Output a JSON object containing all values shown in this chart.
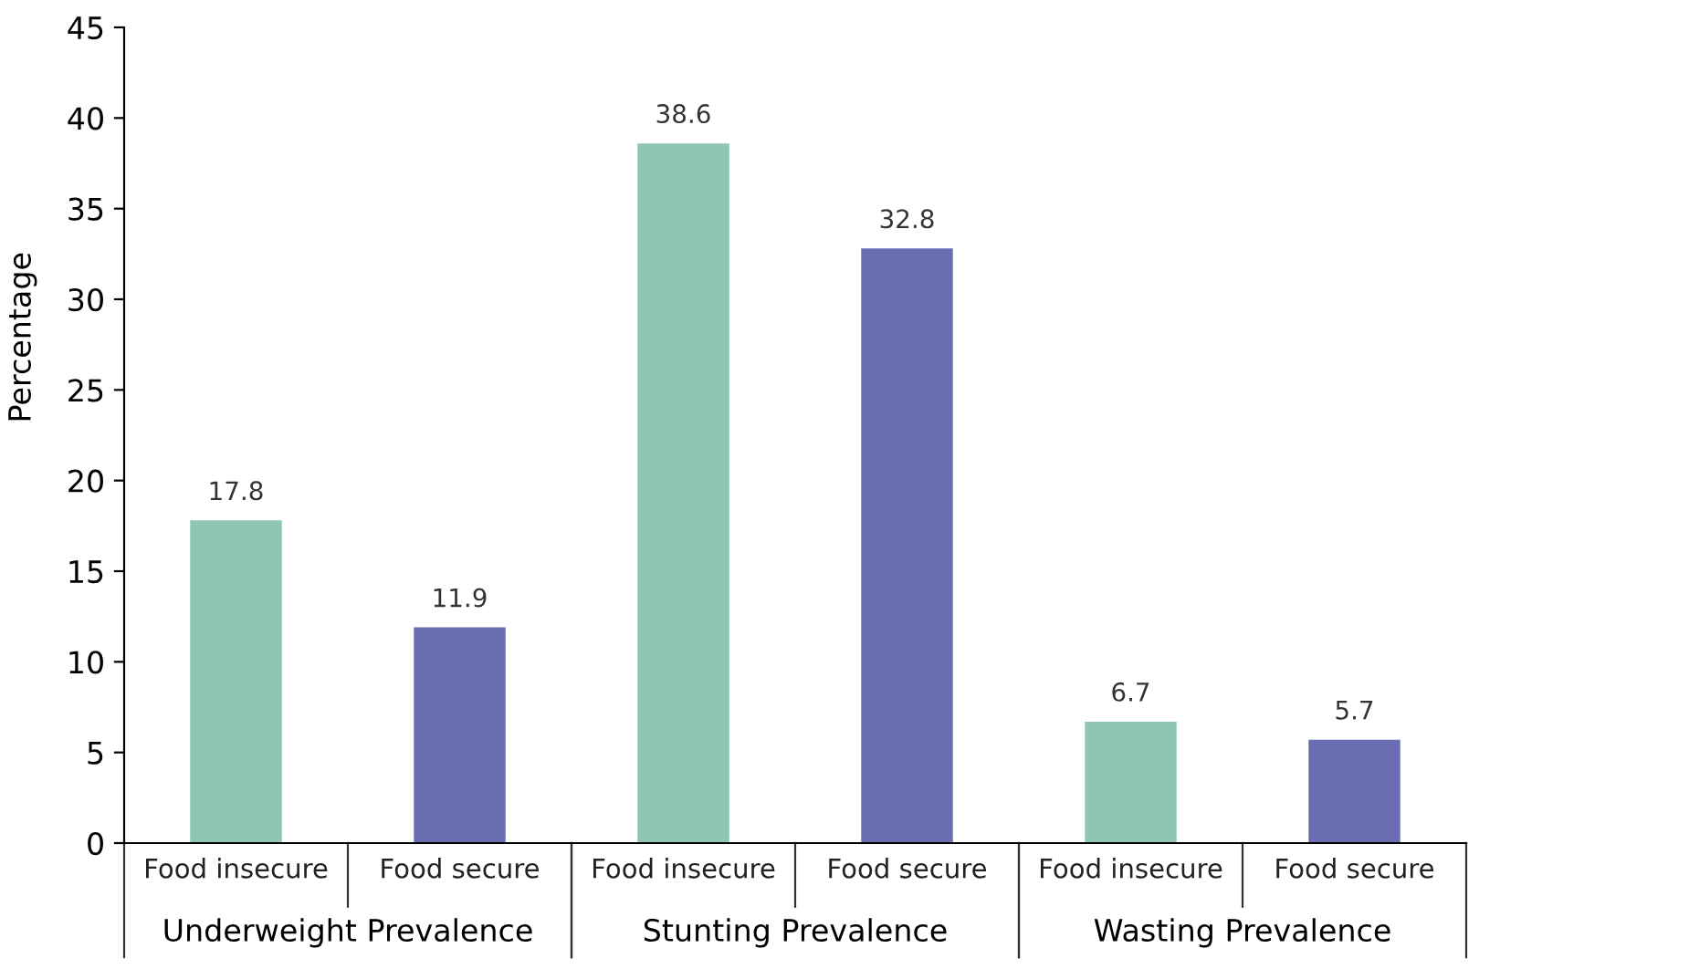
{
  "chart_data": {
    "type": "bar",
    "ylabel": "Percentage",
    "categories": [
      "Underweight Prevalence",
      "Stunting Prevalence",
      "Wasting Prevalence"
    ],
    "series": [
      {
        "name": "Food insecure",
        "color": "#8fc5b3",
        "values": [
          17.8,
          38.6,
          6.7
        ]
      },
      {
        "name": "Food secure",
        "color": "#6b6db3",
        "values": [
          11.9,
          32.8,
          5.7
        ]
      }
    ],
    "ylim": [
      0,
      45
    ],
    "yticks": [
      0,
      5,
      10,
      15,
      20,
      25,
      30,
      35,
      40,
      45
    ],
    "grid": false,
    "legend": false,
    "data_labels": true
  }
}
